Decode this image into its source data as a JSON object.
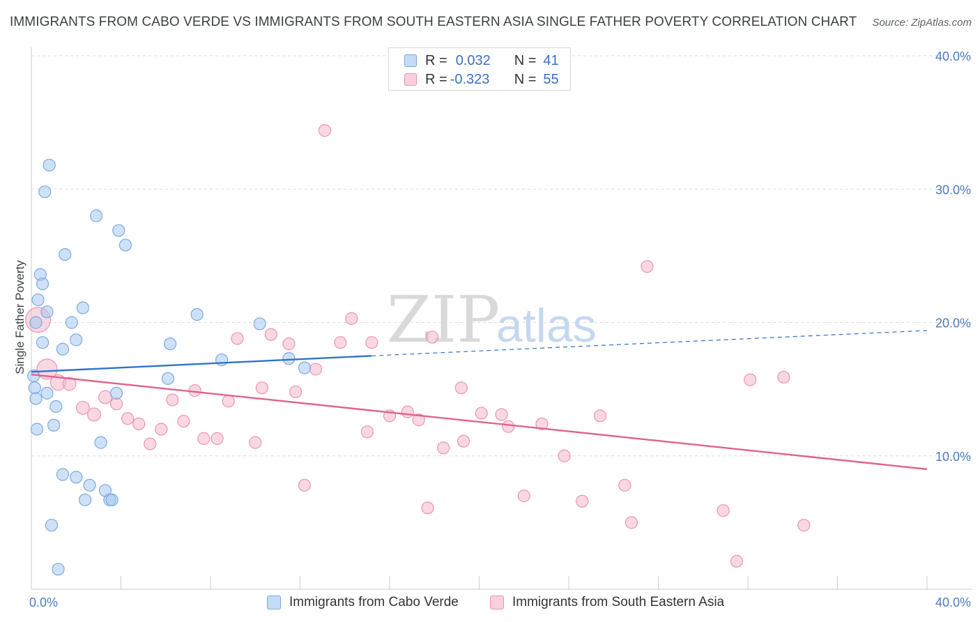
{
  "title": "IMMIGRANTS FROM CABO VERDE VS IMMIGRANTS FROM SOUTH EASTERN ASIA SINGLE FATHER POVERTY CORRELATION CHART",
  "source": "Source: ZipAtlas.com",
  "watermark": {
    "zip": "ZIP",
    "atlas": "atlas"
  },
  "legend": {
    "rows": [
      {
        "r_label": "R =",
        "r_value": "0.032",
        "n_label": "N =",
        "n_value": "41",
        "color": "#a8c8f0"
      },
      {
        "r_label": "R =",
        "r_value": "-0.323",
        "n_label": "N =",
        "n_value": "55",
        "color": "#f5b8cb"
      }
    ]
  },
  "colors": {
    "blue_fill": "#a8c8f0",
    "blue_stroke": "#7aaae0",
    "blue_line": "#2f74c8",
    "pink_fill": "#f5b8cb",
    "pink_stroke": "#ec94b0",
    "pink_line": "#e0628e",
    "tick_text": "#4a7cc7",
    "grid": "#dddddd"
  },
  "chart_data": {
    "type": "scatter",
    "ylabel": "Single Father Poverty",
    "xlim": [
      0,
      40
    ],
    "ylim": [
      0,
      40
    ],
    "x_tick_labels": [
      {
        "value": 0,
        "label": "0.0%"
      },
      {
        "value": 40,
        "label": "40.0%"
      }
    ],
    "y_tick_labels": [
      {
        "value": 10,
        "label": "10.0%"
      },
      {
        "value": 20,
        "label": "20.0%"
      },
      {
        "value": 30,
        "label": "30.0%"
      },
      {
        "value": 40,
        "label": "40.0%"
      }
    ],
    "series": [
      {
        "name": "Immigrants from Cabo Verde",
        "color": "#a8c8f0",
        "trend": {
          "x0": 0,
          "y0": 16.3,
          "x1": 15.2,
          "y1": 17.5,
          "dash_to_x": 40,
          "dash_to_y": 19.4
        },
        "points": [
          {
            "x": 0.8,
            "y": 31.8,
            "s": 1
          },
          {
            "x": 0.6,
            "y": 29.8,
            "s": 1
          },
          {
            "x": 2.9,
            "y": 28.0,
            "s": 1
          },
          {
            "x": 3.9,
            "y": 26.9,
            "s": 1
          },
          {
            "x": 4.2,
            "y": 25.8,
            "s": 1
          },
          {
            "x": 1.5,
            "y": 25.1,
            "s": 1
          },
          {
            "x": 0.4,
            "y": 23.6,
            "s": 1
          },
          {
            "x": 0.5,
            "y": 22.9,
            "s": 1
          },
          {
            "x": 0.3,
            "y": 21.7,
            "s": 1
          },
          {
            "x": 2.3,
            "y": 21.1,
            "s": 1
          },
          {
            "x": 0.7,
            "y": 20.8,
            "s": 1
          },
          {
            "x": 7.4,
            "y": 20.6,
            "s": 1
          },
          {
            "x": 0.2,
            "y": 20.0,
            "s": 1
          },
          {
            "x": 1.8,
            "y": 20.0,
            "s": 1
          },
          {
            "x": 10.2,
            "y": 19.9,
            "s": 1
          },
          {
            "x": 2.0,
            "y": 18.7,
            "s": 1
          },
          {
            "x": 0.5,
            "y": 18.5,
            "s": 1
          },
          {
            "x": 6.2,
            "y": 18.4,
            "s": 1
          },
          {
            "x": 1.4,
            "y": 18.0,
            "s": 1
          },
          {
            "x": 11.5,
            "y": 17.3,
            "s": 1
          },
          {
            "x": 8.5,
            "y": 17.2,
            "s": 1
          },
          {
            "x": 12.2,
            "y": 16.6,
            "s": 1
          },
          {
            "x": 0.1,
            "y": 16.0,
            "s": 1
          },
          {
            "x": 6.1,
            "y": 15.8,
            "s": 1
          },
          {
            "x": 0.15,
            "y": 15.1,
            "s": 1
          },
          {
            "x": 0.7,
            "y": 14.7,
            "s": 1
          },
          {
            "x": 3.8,
            "y": 14.7,
            "s": 1
          },
          {
            "x": 0.2,
            "y": 14.3,
            "s": 1
          },
          {
            "x": 1.1,
            "y": 13.7,
            "s": 1
          },
          {
            "x": 1.0,
            "y": 12.3,
            "s": 1
          },
          {
            "x": 0.25,
            "y": 12.0,
            "s": 1
          },
          {
            "x": 3.1,
            "y": 11.0,
            "s": 1
          },
          {
            "x": 1.4,
            "y": 8.6,
            "s": 1
          },
          {
            "x": 2.0,
            "y": 8.4,
            "s": 1
          },
          {
            "x": 2.6,
            "y": 7.8,
            "s": 1
          },
          {
            "x": 3.3,
            "y": 7.4,
            "s": 1
          },
          {
            "x": 2.4,
            "y": 6.7,
            "s": 1
          },
          {
            "x": 3.5,
            "y": 6.7,
            "s": 1
          },
          {
            "x": 3.6,
            "y": 6.7,
            "s": 1
          },
          {
            "x": 0.9,
            "y": 4.8,
            "s": 1
          },
          {
            "x": 1.2,
            "y": 1.5,
            "s": 1
          }
        ]
      },
      {
        "name": "Immigrants from South Eastern Asia",
        "color": "#f5b8cb",
        "trend": {
          "x0": 0,
          "y0": 16.1,
          "x1": 40,
          "y1": 9.0
        },
        "points": [
          {
            "x": 13.1,
            "y": 34.4,
            "s": 1
          },
          {
            "x": 27.5,
            "y": 24.2,
            "s": 1
          },
          {
            "x": 0.3,
            "y": 20.2,
            "s": 2.1
          },
          {
            "x": 14.3,
            "y": 20.3,
            "s": 1
          },
          {
            "x": 10.7,
            "y": 19.1,
            "s": 1
          },
          {
            "x": 17.9,
            "y": 18.9,
            "s": 1
          },
          {
            "x": 9.2,
            "y": 18.8,
            "s": 1
          },
          {
            "x": 11.5,
            "y": 18.4,
            "s": 1
          },
          {
            "x": 13.8,
            "y": 18.5,
            "s": 1
          },
          {
            "x": 15.2,
            "y": 18.5,
            "s": 1
          },
          {
            "x": 0.7,
            "y": 16.5,
            "s": 1.7
          },
          {
            "x": 12.7,
            "y": 16.5,
            "s": 1
          },
          {
            "x": 33.6,
            "y": 15.9,
            "s": 1
          },
          {
            "x": 32.1,
            "y": 15.7,
            "s": 1
          },
          {
            "x": 1.2,
            "y": 15.5,
            "s": 1.3
          },
          {
            "x": 1.7,
            "y": 15.4,
            "s": 1.1
          },
          {
            "x": 10.3,
            "y": 15.1,
            "s": 1
          },
          {
            "x": 19.2,
            "y": 15.1,
            "s": 1
          },
          {
            "x": 7.3,
            "y": 14.9,
            "s": 1
          },
          {
            "x": 11.8,
            "y": 14.8,
            "s": 1
          },
          {
            "x": 3.3,
            "y": 14.4,
            "s": 1.1
          },
          {
            "x": 6.3,
            "y": 14.2,
            "s": 1
          },
          {
            "x": 8.8,
            "y": 14.1,
            "s": 1
          },
          {
            "x": 3.8,
            "y": 13.9,
            "s": 1
          },
          {
            "x": 2.3,
            "y": 13.6,
            "s": 1.1
          },
          {
            "x": 16.8,
            "y": 13.3,
            "s": 1
          },
          {
            "x": 20.1,
            "y": 13.2,
            "s": 1
          },
          {
            "x": 2.8,
            "y": 13.1,
            "s": 1.1
          },
          {
            "x": 21.0,
            "y": 13.1,
            "s": 1
          },
          {
            "x": 16.0,
            "y": 13.0,
            "s": 1
          },
          {
            "x": 25.4,
            "y": 13.0,
            "s": 1
          },
          {
            "x": 4.3,
            "y": 12.8,
            "s": 1
          },
          {
            "x": 17.3,
            "y": 12.7,
            "s": 1
          },
          {
            "x": 6.8,
            "y": 12.6,
            "s": 1
          },
          {
            "x": 4.8,
            "y": 12.4,
            "s": 1
          },
          {
            "x": 22.8,
            "y": 12.4,
            "s": 1
          },
          {
            "x": 21.3,
            "y": 12.2,
            "s": 1
          },
          {
            "x": 5.8,
            "y": 12.0,
            "s": 1
          },
          {
            "x": 15.0,
            "y": 11.8,
            "s": 1
          },
          {
            "x": 7.7,
            "y": 11.3,
            "s": 1
          },
          {
            "x": 8.3,
            "y": 11.3,
            "s": 1
          },
          {
            "x": 19.3,
            "y": 11.1,
            "s": 1
          },
          {
            "x": 10.0,
            "y": 11.0,
            "s": 1
          },
          {
            "x": 5.3,
            "y": 10.9,
            "s": 1
          },
          {
            "x": 18.4,
            "y": 10.6,
            "s": 1
          },
          {
            "x": 23.8,
            "y": 10.0,
            "s": 1
          },
          {
            "x": 12.2,
            "y": 7.8,
            "s": 1
          },
          {
            "x": 26.5,
            "y": 7.8,
            "s": 1
          },
          {
            "x": 22.0,
            "y": 7.0,
            "s": 1
          },
          {
            "x": 24.6,
            "y": 6.6,
            "s": 1
          },
          {
            "x": 17.7,
            "y": 6.1,
            "s": 1
          },
          {
            "x": 30.9,
            "y": 5.9,
            "s": 1
          },
          {
            "x": 26.8,
            "y": 5.0,
            "s": 1
          },
          {
            "x": 34.5,
            "y": 4.8,
            "s": 1
          },
          {
            "x": 31.5,
            "y": 2.1,
            "s": 1
          }
        ]
      }
    ]
  }
}
